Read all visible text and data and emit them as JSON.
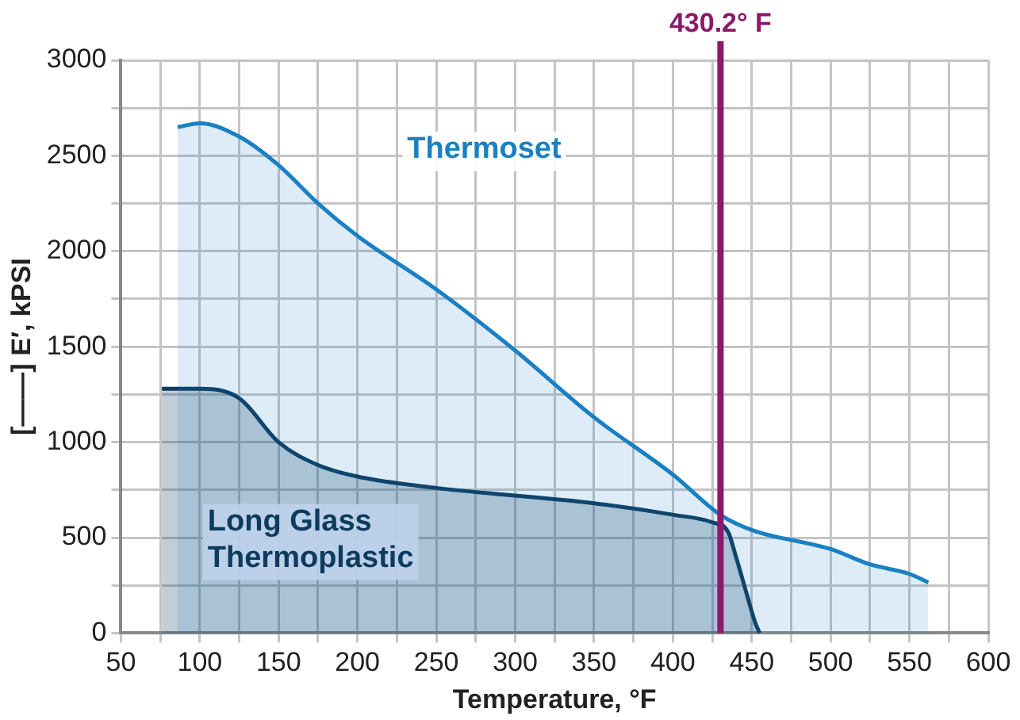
{
  "chart_data": {
    "type": "area",
    "xlabel": "Temperature, °F",
    "ylabel": "[——] E′, kPSI",
    "xlim": [
      50,
      600
    ],
    "ylim": [
      0,
      3000
    ],
    "xticks": [
      50,
      {
        "value": 75,
        "label": null
      },
      100,
      {
        "value": 125,
        "label": null
      },
      150,
      {
        "value": 175,
        "label": null
      },
      200,
      {
        "value": 225,
        "label": null
      },
      250,
      {
        "value": 275,
        "label": null
      },
      300,
      {
        "value": 325,
        "label": null
      },
      350,
      {
        "value": 375,
        "label": null
      },
      400,
      {
        "value": 425,
        "label": null
      },
      450,
      {
        "value": 475,
        "label": null
      },
      500,
      {
        "value": 525,
        "label": null
      },
      550,
      {
        "value": 575,
        "label": null
      },
      600
    ],
    "yticks": [
      0,
      {
        "value": 250,
        "label": null
      },
      500,
      {
        "value": 750,
        "label": null
      },
      1000,
      {
        "value": 1250,
        "label": null
      },
      1500,
      {
        "value": 1750,
        "label": null
      },
      2000,
      {
        "value": 2250,
        "label": null
      },
      2500,
      {
        "value": 2750,
        "label": null
      },
      3000
    ],
    "grid": true,
    "legend": false,
    "series": [
      {
        "name": "Thermoset",
        "color": "#1a80c4",
        "x": [
          86,
          100,
          125,
          150,
          175,
          200,
          250,
          300,
          350,
          400,
          430,
          450,
          500,
          525,
          550,
          562
        ],
        "values": [
          2650,
          2670,
          2600,
          2450,
          2250,
          2080,
          1800,
          1480,
          1130,
          830,
          620,
          540,
          440,
          360,
          310,
          265
        ]
      },
      {
        "name": "Long Glass Thermoplastic",
        "color": "#0d3b5e",
        "x": [
          76,
          100,
          125,
          150,
          175,
          200,
          250,
          300,
          350,
          400,
          425,
          435,
          440,
          447,
          452,
          455
        ],
        "values": [
          1280,
          1280,
          1230,
          1000,
          880,
          820,
          760,
          720,
          680,
          620,
          580,
          530,
          400,
          200,
          60,
          0
        ]
      }
    ],
    "ref_lines": [
      {
        "axis": "x",
        "value": 430.2,
        "label": "430.2° F",
        "color": "#8b1a6b"
      }
    ]
  }
}
